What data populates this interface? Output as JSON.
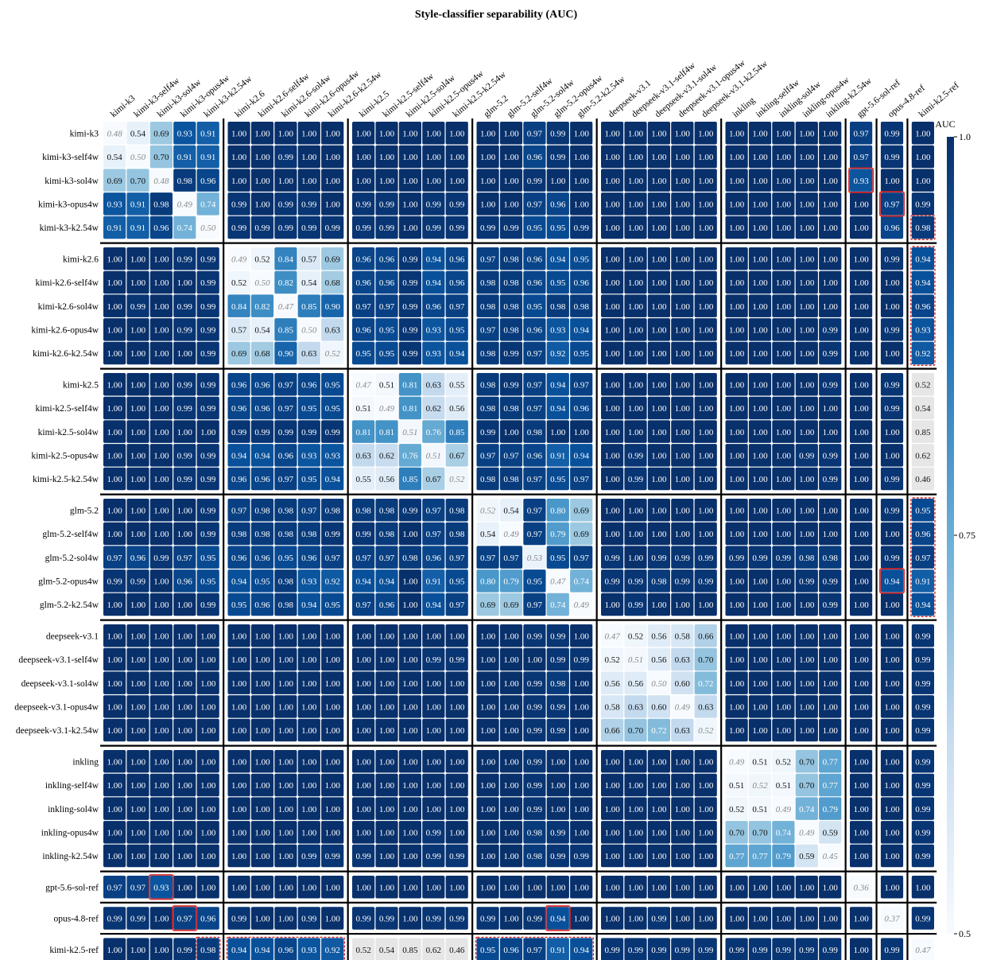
{
  "chart_data": {
    "type": "heatmap",
    "title": "Style-classifier separability (AUC)",
    "colorbar": {
      "label": "AUC",
      "ticks": [
        "0.5",
        "0.75",
        "1.0"
      ],
      "range": [
        0.5,
        1.0
      ]
    },
    "labels": [
      "kimi-k3",
      "kimi-k3-self4w",
      "kimi-k3-sol4w",
      "kimi-k3-opus4w",
      "kimi-k3-k2.54w",
      "kimi-k2.6",
      "kimi-k2.6-self4w",
      "kimi-k2.6-sol4w",
      "kimi-k2.6-opus4w",
      "kimi-k2.6-k2.54w",
      "kimi-k2.5",
      "kimi-k2.5-self4w",
      "kimi-k2.5-sol4w",
      "kimi-k2.5-opus4w",
      "kimi-k2.5-k2.54w",
      "glm-5.2",
      "glm-5.2-self4w",
      "glm-5.2-sol4w",
      "glm-5.2-opus4w",
      "glm-5.2-k2.54w",
      "deepseek-v3.1",
      "deepseek-v3.1-self4w",
      "deepseek-v3.1-sol4w",
      "deepseek-v3.1-opus4w",
      "deepseek-v3.1-k2.54w",
      "inkling",
      "inkling-self4w",
      "inkling-sol4w",
      "inkling-opus4w",
      "inkling-k2.54w",
      "gpt-5.6-sol-ref",
      "opus-4.8-ref",
      "kimi-k2.5-ref"
    ],
    "groups": [
      5,
      5,
      5,
      5,
      5,
      5,
      1,
      1,
      1
    ],
    "matrix": [
      [
        0.48,
        0.54,
        0.69,
        0.93,
        0.91,
        1.0,
        1.0,
        1.0,
        1.0,
        1.0,
        1.0,
        1.0,
        1.0,
        1.0,
        1.0,
        1.0,
        1.0,
        0.97,
        0.99,
        1.0,
        1.0,
        1.0,
        1.0,
        1.0,
        1.0,
        1.0,
        1.0,
        1.0,
        1.0,
        1.0,
        0.97,
        0.99,
        1.0
      ],
      [
        0.54,
        0.5,
        0.7,
        0.91,
        0.91,
        1.0,
        1.0,
        0.99,
        1.0,
        1.0,
        1.0,
        1.0,
        1.0,
        1.0,
        1.0,
        1.0,
        1.0,
        0.96,
        0.99,
        1.0,
        1.0,
        1.0,
        1.0,
        1.0,
        1.0,
        1.0,
        1.0,
        1.0,
        1.0,
        1.0,
        0.97,
        0.99,
        1.0
      ],
      [
        0.69,
        0.7,
        0.48,
        0.98,
        0.96,
        1.0,
        1.0,
        1.0,
        1.0,
        1.0,
        1.0,
        1.0,
        1.0,
        1.0,
        1.0,
        1.0,
        1.0,
        0.99,
        1.0,
        1.0,
        1.0,
        1.0,
        1.0,
        1.0,
        1.0,
        1.0,
        1.0,
        1.0,
        1.0,
        1.0,
        0.93,
        1.0,
        1.0
      ],
      [
        0.93,
        0.91,
        0.98,
        0.49,
        0.74,
        0.99,
        1.0,
        0.99,
        0.99,
        1.0,
        0.99,
        0.99,
        1.0,
        0.99,
        0.99,
        1.0,
        1.0,
        0.97,
        0.96,
        1.0,
        1.0,
        1.0,
        1.0,
        1.0,
        1.0,
        1.0,
        1.0,
        1.0,
        1.0,
        1.0,
        1.0,
        0.97,
        0.99
      ],
      [
        0.91,
        0.91,
        0.96,
        0.74,
        0.5,
        0.99,
        0.99,
        0.99,
        0.99,
        0.99,
        0.99,
        0.99,
        1.0,
        0.99,
        0.99,
        0.99,
        0.99,
        0.95,
        0.95,
        0.99,
        1.0,
        1.0,
        1.0,
        1.0,
        1.0,
        1.0,
        1.0,
        1.0,
        1.0,
        1.0,
        1.0,
        0.96,
        0.98
      ],
      [
        1.0,
        1.0,
        1.0,
        0.99,
        0.99,
        0.49,
        0.52,
        0.84,
        0.57,
        0.69,
        0.96,
        0.96,
        0.99,
        0.94,
        0.96,
        0.97,
        0.98,
        0.96,
        0.94,
        0.95,
        1.0,
        1.0,
        1.0,
        1.0,
        1.0,
        1.0,
        1.0,
        1.0,
        1.0,
        1.0,
        1.0,
        0.99,
        0.94
      ],
      [
        1.0,
        1.0,
        1.0,
        1.0,
        0.99,
        0.52,
        0.5,
        0.82,
        0.54,
        0.68,
        0.96,
        0.96,
        0.99,
        0.94,
        0.96,
        0.98,
        0.98,
        0.96,
        0.95,
        0.96,
        1.0,
        1.0,
        1.0,
        1.0,
        1.0,
        1.0,
        1.0,
        1.0,
        1.0,
        1.0,
        1.0,
        1.0,
        0.94
      ],
      [
        1.0,
        0.99,
        1.0,
        0.99,
        0.99,
        0.84,
        0.82,
        0.47,
        0.85,
        0.9,
        0.97,
        0.97,
        0.99,
        0.96,
        0.97,
        0.98,
        0.98,
        0.95,
        0.98,
        0.98,
        1.0,
        1.0,
        1.0,
        1.0,
        1.0,
        1.0,
        1.0,
        1.0,
        1.0,
        1.0,
        1.0,
        1.0,
        0.96
      ],
      [
        1.0,
        1.0,
        1.0,
        0.99,
        0.99,
        0.57,
        0.54,
        0.85,
        0.5,
        0.63,
        0.96,
        0.95,
        0.99,
        0.93,
        0.95,
        0.97,
        0.98,
        0.96,
        0.93,
        0.94,
        1.0,
        1.0,
        1.0,
        1.0,
        1.0,
        1.0,
        1.0,
        1.0,
        1.0,
        0.99,
        1.0,
        0.99,
        0.93
      ],
      [
        1.0,
        1.0,
        1.0,
        1.0,
        0.99,
        0.69,
        0.68,
        0.9,
        0.63,
        0.52,
        0.95,
        0.95,
        0.99,
        0.93,
        0.94,
        0.98,
        0.99,
        0.97,
        0.92,
        0.95,
        1.0,
        1.0,
        1.0,
        1.0,
        1.0,
        1.0,
        1.0,
        1.0,
        1.0,
        0.99,
        1.0,
        1.0,
        0.92
      ],
      [
        1.0,
        1.0,
        1.0,
        0.99,
        0.99,
        0.96,
        0.96,
        0.97,
        0.96,
        0.95,
        0.47,
        0.51,
        0.81,
        0.63,
        0.55,
        0.98,
        0.99,
        0.97,
        0.94,
        0.97,
        1.0,
        1.0,
        1.0,
        1.0,
        1.0,
        1.0,
        1.0,
        1.0,
        1.0,
        0.99,
        1.0,
        0.99,
        0.52
      ],
      [
        1.0,
        1.0,
        1.0,
        0.99,
        0.99,
        0.96,
        0.96,
        0.97,
        0.95,
        0.95,
        0.51,
        0.49,
        0.81,
        0.62,
        0.56,
        0.98,
        0.98,
        0.97,
        0.94,
        0.96,
        1.0,
        1.0,
        1.0,
        1.0,
        1.0,
        1.0,
        1.0,
        1.0,
        1.0,
        1.0,
        1.0,
        0.99,
        0.54
      ],
      [
        1.0,
        1.0,
        1.0,
        1.0,
        1.0,
        0.99,
        0.99,
        0.99,
        0.99,
        0.99,
        0.81,
        0.81,
        0.51,
        0.76,
        0.85,
        0.99,
        1.0,
        0.98,
        1.0,
        1.0,
        1.0,
        1.0,
        1.0,
        1.0,
        1.0,
        1.0,
        1.0,
        1.0,
        1.0,
        1.0,
        1.0,
        1.0,
        0.85
      ],
      [
        1.0,
        1.0,
        1.0,
        0.99,
        0.99,
        0.94,
        0.94,
        0.96,
        0.93,
        0.93,
        0.63,
        0.62,
        0.76,
        0.51,
        0.67,
        0.97,
        0.97,
        0.96,
        0.91,
        0.94,
        1.0,
        0.99,
        1.0,
        1.0,
        1.0,
        1.0,
        1.0,
        1.0,
        0.99,
        0.99,
        1.0,
        1.0,
        0.62
      ],
      [
        1.0,
        1.0,
        1.0,
        0.99,
        0.99,
        0.96,
        0.96,
        0.97,
        0.95,
        0.94,
        0.55,
        0.56,
        0.85,
        0.67,
        0.52,
        0.98,
        0.98,
        0.97,
        0.95,
        0.97,
        1.0,
        0.99,
        1.0,
        1.0,
        1.0,
        1.0,
        1.0,
        1.0,
        1.0,
        0.99,
        1.0,
        0.99,
        0.46
      ],
      [
        1.0,
        1.0,
        1.0,
        1.0,
        0.99,
        0.97,
        0.98,
        0.98,
        0.97,
        0.98,
        0.98,
        0.98,
        0.99,
        0.97,
        0.98,
        0.52,
        0.54,
        0.97,
        0.8,
        0.69,
        1.0,
        1.0,
        1.0,
        1.0,
        1.0,
        1.0,
        1.0,
        1.0,
        1.0,
        1.0,
        1.0,
        0.99,
        0.95
      ],
      [
        1.0,
        1.0,
        1.0,
        1.0,
        0.99,
        0.98,
        0.98,
        0.98,
        0.98,
        0.99,
        0.99,
        0.98,
        1.0,
        0.97,
        0.98,
        0.54,
        0.49,
        0.97,
        0.79,
        0.69,
        1.0,
        1.0,
        1.0,
        1.0,
        1.0,
        1.0,
        1.0,
        1.0,
        1.0,
        1.0,
        1.0,
        1.0,
        0.96
      ],
      [
        0.97,
        0.96,
        0.99,
        0.97,
        0.95,
        0.96,
        0.96,
        0.95,
        0.96,
        0.97,
        0.97,
        0.97,
        0.98,
        0.96,
        0.97,
        0.97,
        0.97,
        0.53,
        0.95,
        0.97,
        0.99,
        1.0,
        0.99,
        0.99,
        0.99,
        0.99,
        0.99,
        0.99,
        0.98,
        0.98,
        1.0,
        0.99,
        0.97
      ],
      [
        0.99,
        0.99,
        1.0,
        0.96,
        0.95,
        0.94,
        0.95,
        0.98,
        0.93,
        0.92,
        0.94,
        0.94,
        1.0,
        0.91,
        0.95,
        0.8,
        0.79,
        0.95,
        0.47,
        0.74,
        0.99,
        0.99,
        0.98,
        0.99,
        0.99,
        1.0,
        1.0,
        1.0,
        0.99,
        0.99,
        1.0,
        0.94,
        0.91
      ],
      [
        1.0,
        1.0,
        1.0,
        1.0,
        0.99,
        0.95,
        0.96,
        0.98,
        0.94,
        0.95,
        0.97,
        0.96,
        1.0,
        0.94,
        0.97,
        0.69,
        0.69,
        0.97,
        0.74,
        0.49,
        1.0,
        0.99,
        1.0,
        1.0,
        1.0,
        1.0,
        1.0,
        1.0,
        1.0,
        0.99,
        1.0,
        1.0,
        0.94
      ],
      [
        1.0,
        1.0,
        1.0,
        1.0,
        1.0,
        1.0,
        1.0,
        1.0,
        1.0,
        1.0,
        1.0,
        1.0,
        1.0,
        1.0,
        1.0,
        1.0,
        1.0,
        0.99,
        0.99,
        1.0,
        0.47,
        0.52,
        0.56,
        0.58,
        0.66,
        1.0,
        1.0,
        1.0,
        1.0,
        1.0,
        1.0,
        1.0,
        0.99
      ],
      [
        1.0,
        1.0,
        1.0,
        1.0,
        1.0,
        1.0,
        1.0,
        1.0,
        1.0,
        1.0,
        1.0,
        1.0,
        1.0,
        0.99,
        0.99,
        1.0,
        1.0,
        1.0,
        0.99,
        0.99,
        0.52,
        0.51,
        0.56,
        0.63,
        0.7,
        1.0,
        1.0,
        1.0,
        1.0,
        1.0,
        1.0,
        1.0,
        0.99
      ],
      [
        1.0,
        1.0,
        1.0,
        1.0,
        1.0,
        1.0,
        1.0,
        1.0,
        1.0,
        1.0,
        1.0,
        1.0,
        1.0,
        1.0,
        1.0,
        1.0,
        1.0,
        0.99,
        0.98,
        1.0,
        0.56,
        0.56,
        0.5,
        0.6,
        0.72,
        1.0,
        1.0,
        1.0,
        1.0,
        1.0,
        1.0,
        1.0,
        0.99
      ],
      [
        1.0,
        1.0,
        1.0,
        1.0,
        1.0,
        1.0,
        1.0,
        1.0,
        1.0,
        1.0,
        1.0,
        1.0,
        1.0,
        1.0,
        1.0,
        1.0,
        1.0,
        0.99,
        0.99,
        1.0,
        0.58,
        0.63,
        0.6,
        0.49,
        0.63,
        1.0,
        1.0,
        1.0,
        1.0,
        1.0,
        1.0,
        1.0,
        0.99
      ],
      [
        1.0,
        1.0,
        1.0,
        1.0,
        1.0,
        1.0,
        1.0,
        1.0,
        1.0,
        1.0,
        1.0,
        1.0,
        1.0,
        1.0,
        1.0,
        1.0,
        1.0,
        0.99,
        0.99,
        1.0,
        0.66,
        0.7,
        0.72,
        0.63,
        0.52,
        1.0,
        1.0,
        1.0,
        1.0,
        1.0,
        1.0,
        1.0,
        0.99
      ],
      [
        1.0,
        1.0,
        1.0,
        1.0,
        1.0,
        1.0,
        1.0,
        1.0,
        1.0,
        1.0,
        1.0,
        1.0,
        1.0,
        1.0,
        1.0,
        1.0,
        1.0,
        0.99,
        1.0,
        1.0,
        1.0,
        1.0,
        1.0,
        1.0,
        1.0,
        0.49,
        0.51,
        0.52,
        0.7,
        0.77,
        1.0,
        1.0,
        0.99
      ],
      [
        1.0,
        1.0,
        1.0,
        1.0,
        1.0,
        1.0,
        1.0,
        1.0,
        1.0,
        1.0,
        1.0,
        1.0,
        1.0,
        1.0,
        1.0,
        1.0,
        1.0,
        0.99,
        1.0,
        1.0,
        1.0,
        1.0,
        1.0,
        1.0,
        1.0,
        0.51,
        0.52,
        0.51,
        0.7,
        0.77,
        1.0,
        1.0,
        0.99
      ],
      [
        1.0,
        1.0,
        1.0,
        1.0,
        1.0,
        1.0,
        1.0,
        1.0,
        1.0,
        1.0,
        1.0,
        1.0,
        1.0,
        1.0,
        1.0,
        1.0,
        1.0,
        0.99,
        1.0,
        1.0,
        1.0,
        1.0,
        1.0,
        1.0,
        1.0,
        0.52,
        0.51,
        0.49,
        0.74,
        0.79,
        1.0,
        1.0,
        0.99
      ],
      [
        1.0,
        1.0,
        1.0,
        1.0,
        1.0,
        1.0,
        1.0,
        1.0,
        1.0,
        1.0,
        1.0,
        1.0,
        1.0,
        0.99,
        1.0,
        1.0,
        1.0,
        0.98,
        0.99,
        1.0,
        1.0,
        1.0,
        1.0,
        1.0,
        1.0,
        0.7,
        0.7,
        0.74,
        0.49,
        0.59,
        1.0,
        1.0,
        0.99
      ],
      [
        1.0,
        1.0,
        1.0,
        1.0,
        1.0,
        1.0,
        1.0,
        1.0,
        0.99,
        0.99,
        0.99,
        1.0,
        1.0,
        0.99,
        0.99,
        1.0,
        1.0,
        0.98,
        0.99,
        0.99,
        1.0,
        1.0,
        1.0,
        1.0,
        1.0,
        0.77,
        0.77,
        0.79,
        0.59,
        0.45,
        1.0,
        1.0,
        0.99
      ],
      [
        0.97,
        0.97,
        0.93,
        1.0,
        1.0,
        1.0,
        1.0,
        1.0,
        1.0,
        1.0,
        1.0,
        1.0,
        1.0,
        1.0,
        1.0,
        1.0,
        1.0,
        1.0,
        1.0,
        1.0,
        1.0,
        1.0,
        1.0,
        1.0,
        1.0,
        1.0,
        1.0,
        1.0,
        1.0,
        1.0,
        0.36,
        1.0,
        1.0
      ],
      [
        0.99,
        0.99,
        1.0,
        0.97,
        0.96,
        0.99,
        1.0,
        1.0,
        0.99,
        1.0,
        0.99,
        0.99,
        1.0,
        0.99,
        0.99,
        0.99,
        1.0,
        0.99,
        0.94,
        1.0,
        1.0,
        1.0,
        0.99,
        1.0,
        1.0,
        1.0,
        1.0,
        1.0,
        1.0,
        1.0,
        1.0,
        0.37,
        0.99
      ],
      [
        1.0,
        1.0,
        1.0,
        0.99,
        0.98,
        0.94,
        0.94,
        0.96,
        0.93,
        0.92,
        0.52,
        0.54,
        0.85,
        0.62,
        0.46,
        0.95,
        0.96,
        0.97,
        0.91,
        0.94,
        0.99,
        0.99,
        0.99,
        0.99,
        0.99,
        0.99,
        0.99,
        0.99,
        0.99,
        0.99,
        1.0,
        0.99,
        0.47
      ]
    ],
    "gray_cells": [
      [
        32,
        10
      ],
      [
        32,
        11
      ],
      [
        32,
        12
      ],
      [
        32,
        13
      ],
      [
        32,
        14
      ],
      [
        10,
        32
      ],
      [
        11,
        32
      ],
      [
        12,
        32
      ],
      [
        13,
        32
      ],
      [
        14,
        32
      ]
    ],
    "red_solid_boxes": [
      [
        2,
        30
      ],
      [
        30,
        2
      ],
      [
        3,
        31
      ],
      [
        31,
        3
      ],
      [
        18,
        31
      ],
      [
        31,
        18
      ]
    ],
    "red_dashed_boxes": [
      {
        "row_start": 4,
        "row_end": 4,
        "col_start": 32,
        "col_end": 32
      },
      {
        "row_start": 5,
        "row_end": 9,
        "col_start": 32,
        "col_end": 32
      },
      {
        "row_start": 15,
        "row_end": 19,
        "col_start": 32,
        "col_end": 32
      },
      {
        "row_start": 32,
        "row_end": 32,
        "col_start": 4,
        "col_end": 4
      },
      {
        "row_start": 32,
        "row_end": 32,
        "col_start": 5,
        "col_end": 9
      },
      {
        "row_start": 32,
        "row_end": 32,
        "col_start": 15,
        "col_end": 19
      }
    ],
    "colors": {
      "low": "#f7fbff",
      "mid": "#6aaed6",
      "high": "#08306b",
      "highlight": "#d62728",
      "gray": "#e6e6e6"
    }
  }
}
